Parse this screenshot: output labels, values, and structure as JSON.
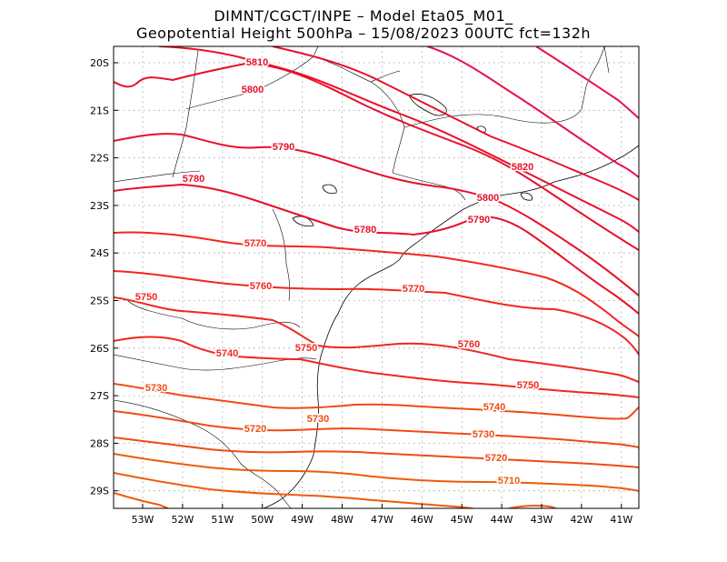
{
  "header": {
    "line1": "DIMNT/CGCT/INPE –  Model Eta05_M01_",
    "line2": "Geopotential Height 500hPa –  15/08/2023 00UTC fct=132h"
  },
  "axes": {
    "lon_labels": [
      "53W",
      "52W",
      "51W",
      "50W",
      "49W",
      "48W",
      "47W",
      "46W",
      "45W",
      "44W",
      "43W",
      "42W",
      "41W"
    ],
    "lat_labels": [
      "20S",
      "21S",
      "22S",
      "23S",
      "24S",
      "25S",
      "26S",
      "27S",
      "28S",
      "29S"
    ]
  },
  "chart_data": {
    "type": "contour-map",
    "variable": "Geopotential Height 500hPa",
    "units": "gpm",
    "lon_range": [
      -53.6,
      -40.5
    ],
    "lat_range": [
      -29.4,
      -19.7
    ],
    "contour_interval": 10,
    "labels": [
      {
        "text": "5810",
        "value": 5810,
        "color": "#e8102a"
      },
      {
        "text": "5800",
        "value": 5800,
        "color": "#e8102a"
      },
      {
        "text": "5790",
        "value": 5790,
        "color": "#e8102a"
      },
      {
        "text": "5780",
        "value": 5780,
        "color": "#e8102a"
      },
      {
        "text": "5820",
        "value": 5820,
        "color": "#e8102a"
      },
      {
        "text": "5800",
        "value": 5800,
        "color": "#e8102a"
      },
      {
        "text": "5790",
        "value": 5790,
        "color": "#e8102a"
      },
      {
        "text": "5780",
        "value": 5780,
        "color": "#e8102a"
      },
      {
        "text": "5770",
        "value": 5770,
        "color": "#f0281e"
      },
      {
        "text": "5760",
        "value": 5760,
        "color": "#f0281e"
      },
      {
        "text": "5770",
        "value": 5770,
        "color": "#f0281e"
      },
      {
        "text": "5750",
        "value": 5750,
        "color": "#f0281e"
      },
      {
        "text": "5760",
        "value": 5760,
        "color": "#f0281e"
      },
      {
        "text": "5740",
        "value": 5740,
        "color": "#f0281e"
      },
      {
        "text": "5750",
        "value": 5750,
        "color": "#f0281e"
      },
      {
        "text": "5750",
        "value": 5750,
        "color": "#f0281e"
      },
      {
        "text": "5730",
        "value": 5730,
        "color": "#f04a14"
      },
      {
        "text": "5740",
        "value": 5740,
        "color": "#f04a14"
      },
      {
        "text": "5730",
        "value": 5730,
        "color": "#f04a14"
      },
      {
        "text": "5720",
        "value": 5720,
        "color": "#f04a14"
      },
      {
        "text": "5730",
        "value": 5730,
        "color": "#f04a14"
      },
      {
        "text": "5720",
        "value": 5720,
        "color": "#f04a14"
      },
      {
        "text": "5710",
        "value": 5710,
        "color": "#f05a0a"
      }
    ],
    "colors": {
      "high": "#e8104a",
      "mid_high": "#e8102a",
      "mid": "#f0281e",
      "low": "#f04a14",
      "lowest": "#f05a0a",
      "coast": "#000000",
      "grid": "#999999"
    }
  }
}
